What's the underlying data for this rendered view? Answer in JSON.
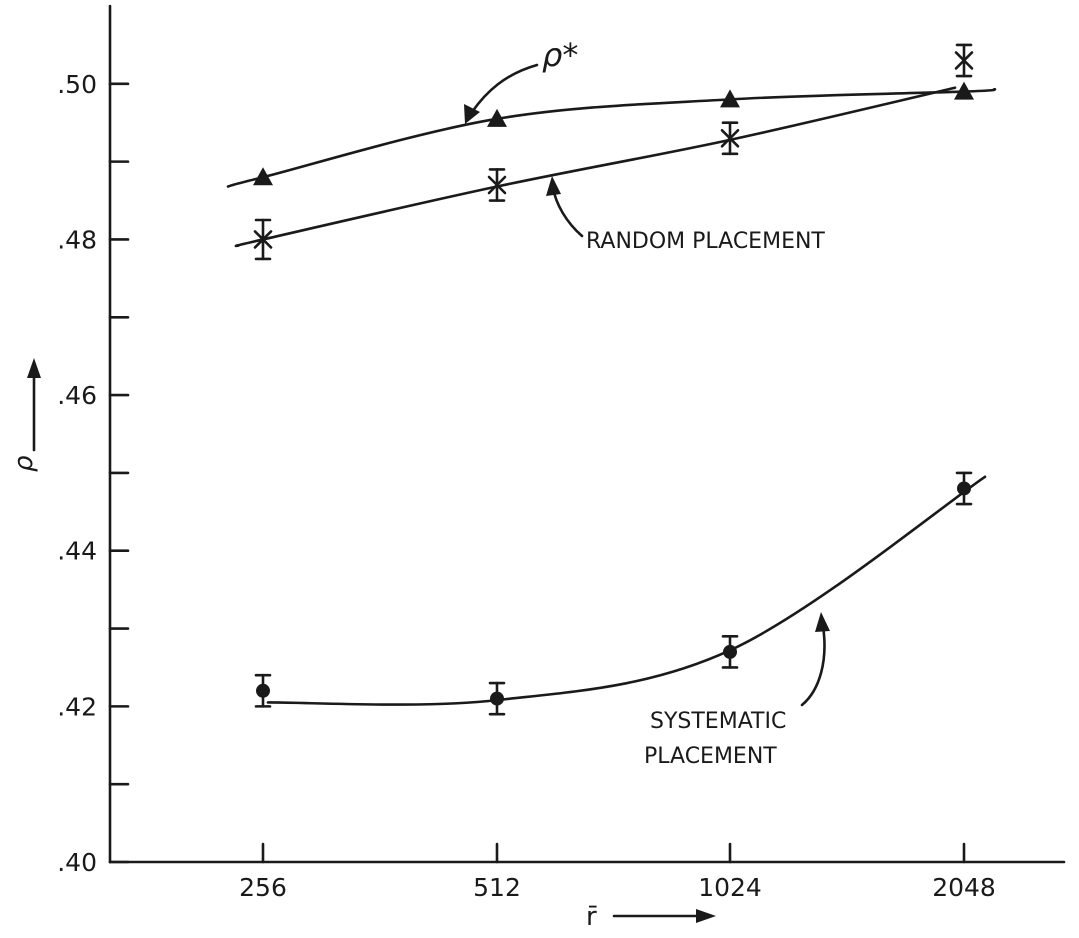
{
  "chart_data": {
    "type": "line",
    "title": "",
    "xlabel": "r̄",
    "ylabel": "ρ",
    "x_scale": "log2",
    "x_ticks": [
      256,
      512,
      1024,
      2048
    ],
    "x_tick_labels": [
      "256",
      "512",
      "1024",
      "2048"
    ],
    "y_tick_labels": [
      ".40",
      ".42",
      ".44",
      ".46",
      ".48",
      ".50"
    ],
    "ylim": [
      0.4,
      0.51
    ],
    "grid": false,
    "series": [
      {
        "name": "ρ*",
        "marker": "triangle",
        "x": [
          256,
          512,
          1024,
          2048
        ],
        "y": [
          0.488,
          0.4955,
          0.498,
          0.499
        ]
      },
      {
        "name": "RANDOM PLACEMENT",
        "marker": "asterisk",
        "x": [
          256,
          512,
          1024,
          2048
        ],
        "y": [
          0.48,
          0.487,
          0.493,
          0.503
        ],
        "error": [
          0.0025,
          0.002,
          0.002,
          0.002
        ]
      },
      {
        "name": "SYSTEMATIC PLACEMENT",
        "marker": "circle",
        "x": [
          256,
          512,
          1024,
          2048
        ],
        "y": [
          0.422,
          0.421,
          0.427,
          0.448
        ],
        "error": [
          0.002,
          0.002,
          0.002,
          0.002
        ]
      }
    ],
    "annotations": {
      "rho_star": "ρ*",
      "random": "RANDOM PLACEMENT",
      "systematic_line1": "SYSTEMATIC",
      "systematic_line2": "PLACEMENT"
    }
  }
}
